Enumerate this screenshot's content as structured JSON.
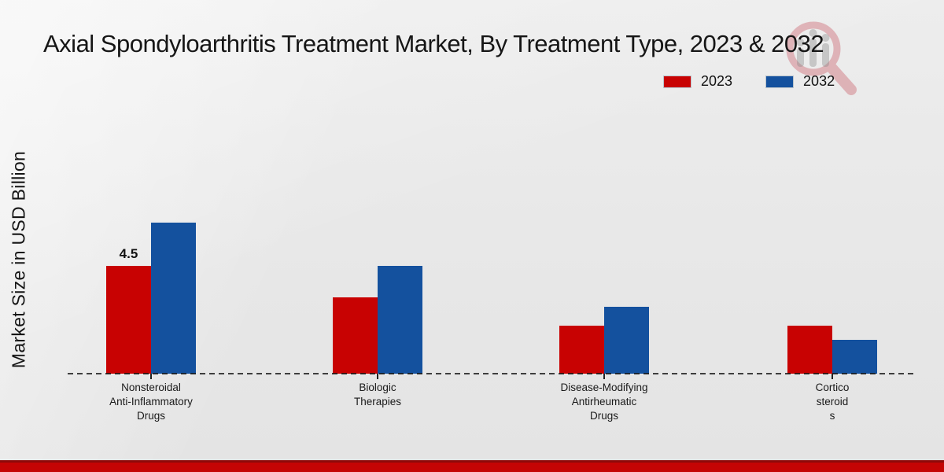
{
  "page": {
    "title": "Axial Spondyloarthritis Treatment Market, By Treatment Type, 2023 & 2032"
  },
  "colors": {
    "series_2023_red": "#c80202",
    "series_2032_blue": "#14519e",
    "footer_band_red": "#c40404",
    "footer_band_dark_edge": "#8e0909",
    "axis_line": "#1a1a1a",
    "background_gray": "#e8e8e8"
  },
  "legend": {
    "items": [
      {
        "label": "2023",
        "color": "#c80202"
      },
      {
        "label": "2032",
        "color": "#14519e"
      }
    ]
  },
  "watermark": {
    "icon": "magnifier-bar-chart-logo"
  },
  "chart_data": {
    "type": "bar",
    "title": "Axial Spondyloarthritis Treatment Market, By Treatment Type, 2023 & 2032",
    "xlabel": "",
    "ylabel": "Market Size in USD Billion",
    "ylim": [
      0,
      7
    ],
    "grid": false,
    "legend_position": "top-right",
    "baseline_style": "dashed",
    "categories": [
      "Nonsteroidal Anti-Inflammatory Drugs",
      "Biologic Therapies",
      "Disease-Modifying Antirheumatic Drugs",
      "Corticosteroids"
    ],
    "category_label_lines": [
      [
        "Nonsteroidal",
        "Anti-Inflammatory",
        "Drugs"
      ],
      [
        "Biologic",
        "Therapies"
      ],
      [
        "Disease-Modifying",
        "Antirheumatic",
        "Drugs"
      ],
      [
        "Cortico",
        "steroid",
        "s"
      ]
    ],
    "series": [
      {
        "name": "2023",
        "color": "#c80202",
        "values": [
          4.5,
          3.2,
          2.0,
          2.0
        ]
      },
      {
        "name": "2032",
        "color": "#14519e",
        "values": [
          6.3,
          4.5,
          2.8,
          1.4
        ]
      }
    ],
    "data_labels": [
      {
        "category_index": 0,
        "series": "2023",
        "text": "4.5"
      }
    ]
  }
}
